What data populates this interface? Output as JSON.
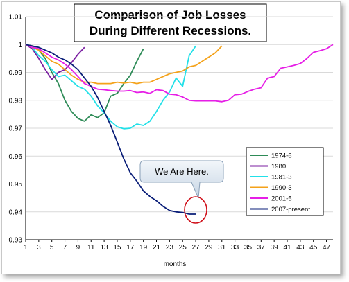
{
  "chart_data": {
    "type": "line",
    "title": "Comparison of Job Losses\nDuring Different Recessions.",
    "xlabel": "months",
    "ylabel": "",
    "xlim": [
      1,
      48
    ],
    "ylim": [
      0.93,
      1.01
    ],
    "x_ticks": [
      1,
      3,
      5,
      7,
      9,
      11,
      13,
      15,
      17,
      19,
      21,
      23,
      25,
      27,
      29,
      31,
      33,
      35,
      37,
      39,
      41,
      43,
      45,
      47
    ],
    "y_ticks": [
      "0.93",
      "0.94",
      "0.95",
      "0.96",
      "0.97",
      "0.98",
      "0.99",
      "1",
      "1.01"
    ],
    "grid": "horizontal",
    "legend_position": "right",
    "annotation": "We Are Here.",
    "series": [
      {
        "name": "1974-6",
        "color": "#2e8b57",
        "values": [
          [
            1,
            1.0
          ],
          [
            2,
            0.9995
          ],
          [
            3,
            0.998
          ],
          [
            4,
            0.995
          ],
          [
            5,
            0.99
          ],
          [
            6,
            0.986
          ],
          [
            7,
            0.98
          ],
          [
            8,
            0.976
          ],
          [
            9,
            0.9735
          ],
          [
            10,
            0.9725
          ],
          [
            11,
            0.9748
          ],
          [
            12,
            0.9738
          ],
          [
            13,
            0.9755
          ],
          [
            14,
            0.9815
          ],
          [
            15,
            0.9825
          ],
          [
            16,
            0.986
          ],
          [
            17,
            0.989
          ],
          [
            18,
            0.994
          ],
          [
            19,
            0.9985
          ]
        ]
      },
      {
        "name": "1980",
        "color": "#7b1fa2",
        "values": [
          [
            1,
            1.0
          ],
          [
            2,
            0.9985
          ],
          [
            3,
            0.995
          ],
          [
            4,
            0.991
          ],
          [
            5,
            0.9875
          ],
          [
            6,
            0.99
          ],
          [
            7,
            0.991
          ],
          [
            8,
            0.9935
          ],
          [
            9,
            0.9965
          ],
          [
            10,
            0.999
          ]
        ]
      },
      {
        "name": "1981-3",
        "color": "#22e0e8",
        "values": [
          [
            1,
            1.0
          ],
          [
            2,
            0.999
          ],
          [
            3,
            0.996
          ],
          [
            4,
            0.994
          ],
          [
            5,
            0.991
          ],
          [
            6,
            0.9885
          ],
          [
            7,
            0.989
          ],
          [
            8,
            0.987
          ],
          [
            9,
            0.985
          ],
          [
            10,
            0.984
          ],
          [
            11,
            0.9815
          ],
          [
            12,
            0.978
          ],
          [
            13,
            0.9755
          ],
          [
            14,
            0.9725
          ],
          [
            15,
            0.9705
          ],
          [
            16,
            0.9698
          ],
          [
            17,
            0.97
          ],
          [
            18,
            0.9715
          ],
          [
            19,
            0.971
          ],
          [
            20,
            0.9725
          ],
          [
            21,
            0.976
          ],
          [
            22,
            0.98
          ],
          [
            23,
            0.983
          ],
          [
            24,
            0.988
          ],
          [
            25,
            0.985
          ],
          [
            26,
            0.996
          ],
          [
            27,
            0.9995
          ]
        ]
      },
      {
        "name": "1990-3",
        "color": "#f4a21a",
        "values": [
          [
            1,
            1.0
          ],
          [
            2,
            0.999
          ],
          [
            3,
            0.998
          ],
          [
            4,
            0.996
          ],
          [
            5,
            0.994
          ],
          [
            6,
            0.993
          ],
          [
            7,
            0.991
          ],
          [
            8,
            0.989
          ],
          [
            9,
            0.9875
          ],
          [
            10,
            0.9865
          ],
          [
            11,
            0.9865
          ],
          [
            12,
            0.986
          ],
          [
            13,
            0.986
          ],
          [
            14,
            0.986
          ],
          [
            15,
            0.9865
          ],
          [
            16,
            0.9862
          ],
          [
            17,
            0.9865
          ],
          [
            18,
            0.986
          ],
          [
            19,
            0.9865
          ],
          [
            20,
            0.9865
          ],
          [
            21,
            0.9875
          ],
          [
            22,
            0.9885
          ],
          [
            23,
            0.9895
          ],
          [
            24,
            0.99
          ],
          [
            25,
            0.9905
          ],
          [
            26,
            0.992
          ],
          [
            27,
            0.9925
          ],
          [
            28,
            0.994
          ],
          [
            29,
            0.9955
          ],
          [
            30,
            0.997
          ],
          [
            31,
            0.9995
          ]
        ]
      },
      {
        "name": "2001-5",
        "color": "#e61ee6",
        "values": [
          [
            1,
            1.0
          ],
          [
            2,
            0.999
          ],
          [
            3,
            0.9985
          ],
          [
            4,
            0.997
          ],
          [
            5,
            0.9955
          ],
          [
            6,
            0.9945
          ],
          [
            7,
            0.993
          ],
          [
            8,
            0.991
          ],
          [
            9,
            0.9885
          ],
          [
            10,
            0.986
          ],
          [
            11,
            0.985
          ],
          [
            12,
            0.984
          ],
          [
            13,
            0.9838
          ],
          [
            14,
            0.9835
          ],
          [
            15,
            0.9833
          ],
          [
            16,
            0.9833
          ],
          [
            17,
            0.9835
          ],
          [
            18,
            0.9828
          ],
          [
            19,
            0.983
          ],
          [
            20,
            0.9825
          ],
          [
            21,
            0.9838
          ],
          [
            22,
            0.9835
          ],
          [
            23,
            0.9822
          ],
          [
            24,
            0.982
          ],
          [
            25,
            0.9812
          ],
          [
            26,
            0.98
          ],
          [
            27,
            0.9798
          ],
          [
            28,
            0.9798
          ],
          [
            29,
            0.9798
          ],
          [
            30,
            0.9798
          ],
          [
            31,
            0.9795
          ],
          [
            32,
            0.98
          ],
          [
            33,
            0.982
          ],
          [
            34,
            0.9822
          ],
          [
            35,
            0.9832
          ],
          [
            36,
            0.984
          ],
          [
            37,
            0.9845
          ],
          [
            38,
            0.988
          ],
          [
            39,
            0.9885
          ],
          [
            40,
            0.9915
          ],
          [
            41,
            0.992
          ],
          [
            42,
            0.9925
          ],
          [
            43,
            0.9932
          ],
          [
            44,
            0.995
          ],
          [
            45,
            0.9972
          ],
          [
            46,
            0.9978
          ],
          [
            47,
            0.9985
          ],
          [
            48,
            1.0
          ]
        ]
      },
      {
        "name": "2007-present",
        "color": "#0a1e78",
        "values": [
          [
            1,
            1.0
          ],
          [
            2,
            0.9995
          ],
          [
            3,
            0.999
          ],
          [
            4,
            0.998
          ],
          [
            5,
            0.997
          ],
          [
            6,
            0.9955
          ],
          [
            7,
            0.9945
          ],
          [
            8,
            0.993
          ],
          [
            9,
            0.991
          ],
          [
            10,
            0.988
          ],
          [
            11,
            0.985
          ],
          [
            12,
            0.981
          ],
          [
            13,
            0.976
          ],
          [
            14,
            0.971
          ],
          [
            15,
            0.965
          ],
          [
            16,
            0.959
          ],
          [
            17,
            0.954
          ],
          [
            18,
            0.951
          ],
          [
            19,
            0.9475
          ],
          [
            20,
            0.9455
          ],
          [
            21,
            0.944
          ],
          [
            22,
            0.942
          ],
          [
            23,
            0.9405
          ],
          [
            24,
            0.94
          ],
          [
            25,
            0.9398
          ],
          [
            26,
            0.9392
          ],
          [
            27,
            0.9392
          ]
        ]
      }
    ]
  }
}
